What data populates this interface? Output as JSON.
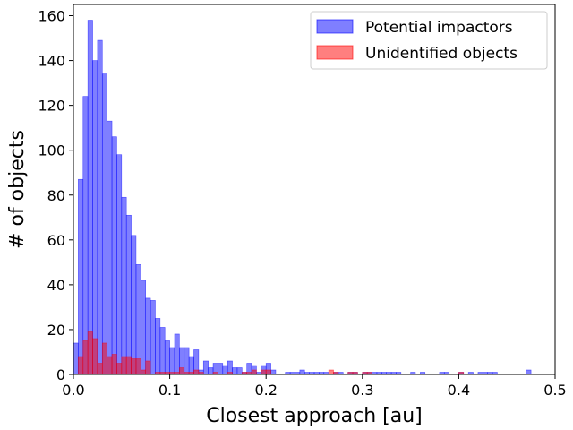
{
  "chart_data": {
    "type": "bar",
    "title": "",
    "xlabel": "Closest approach [au]",
    "ylabel": "# of objects",
    "xlim": [
      0.0,
      0.5
    ],
    "ylim": [
      0,
      165
    ],
    "bin_width": 0.005,
    "xticks": [
      {
        "value": 0.0,
        "label": "0.0"
      },
      {
        "value": 0.1,
        "label": "0.1"
      },
      {
        "value": 0.2,
        "label": "0.2"
      },
      {
        "value": 0.3,
        "label": "0.3"
      },
      {
        "value": 0.4,
        "label": "0.4"
      },
      {
        "value": 0.5,
        "label": "0.5"
      }
    ],
    "yticks": [
      {
        "value": 0,
        "label": "0"
      },
      {
        "value": 20,
        "label": "20"
      },
      {
        "value": 40,
        "label": "40"
      },
      {
        "value": 60,
        "label": "60"
      },
      {
        "value": 80,
        "label": "80"
      },
      {
        "value": 100,
        "label": "100"
      },
      {
        "value": 120,
        "label": "120"
      },
      {
        "value": 140,
        "label": "140"
      },
      {
        "value": 160,
        "label": "160"
      }
    ],
    "grid": false,
    "legend_position": "top-right",
    "series": [
      {
        "name": "Potential impactors",
        "color": "#0000ff",
        "opacity": 0.5,
        "bins": [
          [
            0.0,
            14
          ],
          [
            0.005,
            87
          ],
          [
            0.01,
            124
          ],
          [
            0.015,
            158
          ],
          [
            0.02,
            140
          ],
          [
            0.025,
            149
          ],
          [
            0.03,
            134
          ],
          [
            0.035,
            113
          ],
          [
            0.04,
            106
          ],
          [
            0.045,
            98
          ],
          [
            0.05,
            79
          ],
          [
            0.055,
            71
          ],
          [
            0.06,
            62
          ],
          [
            0.065,
            49
          ],
          [
            0.07,
            42
          ],
          [
            0.075,
            34
          ],
          [
            0.08,
            33
          ],
          [
            0.085,
            25
          ],
          [
            0.09,
            21
          ],
          [
            0.095,
            15
          ],
          [
            0.1,
            12
          ],
          [
            0.105,
            18
          ],
          [
            0.11,
            12
          ],
          [
            0.115,
            12
          ],
          [
            0.12,
            8
          ],
          [
            0.125,
            11
          ],
          [
            0.13,
            2
          ],
          [
            0.135,
            6
          ],
          [
            0.14,
            3
          ],
          [
            0.145,
            5
          ],
          [
            0.15,
            5
          ],
          [
            0.155,
            4
          ],
          [
            0.16,
            6
          ],
          [
            0.165,
            3
          ],
          [
            0.17,
            3
          ],
          [
            0.175,
            1
          ],
          [
            0.18,
            5
          ],
          [
            0.185,
            4
          ],
          [
            0.19,
            1
          ],
          [
            0.195,
            4
          ],
          [
            0.2,
            5
          ],
          [
            0.205,
            2
          ],
          [
            0.22,
            1
          ],
          [
            0.225,
            1
          ],
          [
            0.23,
            1
          ],
          [
            0.235,
            2
          ],
          [
            0.24,
            1
          ],
          [
            0.245,
            1
          ],
          [
            0.25,
            1
          ],
          [
            0.255,
            1
          ],
          [
            0.26,
            1
          ],
          [
            0.27,
            1
          ],
          [
            0.275,
            1
          ],
          [
            0.285,
            1
          ],
          [
            0.29,
            1
          ],
          [
            0.3,
            1
          ],
          [
            0.305,
            1
          ],
          [
            0.31,
            1
          ],
          [
            0.315,
            1
          ],
          [
            0.32,
            1
          ],
          [
            0.325,
            1
          ],
          [
            0.33,
            1
          ],
          [
            0.335,
            1
          ],
          [
            0.35,
            1
          ],
          [
            0.36,
            1
          ],
          [
            0.38,
            1
          ],
          [
            0.385,
            1
          ],
          [
            0.4,
            1
          ],
          [
            0.41,
            1
          ],
          [
            0.42,
            1
          ],
          [
            0.425,
            1
          ],
          [
            0.43,
            1
          ],
          [
            0.435,
            1
          ],
          [
            0.47,
            2
          ]
        ]
      },
      {
        "name": "Unidentified objects",
        "color": "#ff0000",
        "opacity": 0.5,
        "bins": [
          [
            0.005,
            8
          ],
          [
            0.01,
            15
          ],
          [
            0.015,
            19
          ],
          [
            0.02,
            16
          ],
          [
            0.025,
            5
          ],
          [
            0.03,
            14
          ],
          [
            0.035,
            8
          ],
          [
            0.04,
            9
          ],
          [
            0.045,
            5
          ],
          [
            0.05,
            8
          ],
          [
            0.055,
            8
          ],
          [
            0.06,
            7
          ],
          [
            0.065,
            7
          ],
          [
            0.07,
            2
          ],
          [
            0.075,
            6
          ],
          [
            0.085,
            1
          ],
          [
            0.09,
            1
          ],
          [
            0.095,
            1
          ],
          [
            0.1,
            1
          ],
          [
            0.105,
            1
          ],
          [
            0.11,
            3
          ],
          [
            0.115,
            1
          ],
          [
            0.12,
            1
          ],
          [
            0.125,
            2
          ],
          [
            0.13,
            1
          ],
          [
            0.145,
            1
          ],
          [
            0.16,
            1
          ],
          [
            0.175,
            1
          ],
          [
            0.18,
            1
          ],
          [
            0.185,
            2
          ],
          [
            0.195,
            2
          ],
          [
            0.2,
            2
          ],
          [
            0.265,
            2
          ],
          [
            0.27,
            1
          ],
          [
            0.285,
            1
          ],
          [
            0.29,
            1
          ],
          [
            0.3,
            1
          ],
          [
            0.305,
            1
          ],
          [
            0.4,
            1
          ]
        ]
      }
    ]
  }
}
